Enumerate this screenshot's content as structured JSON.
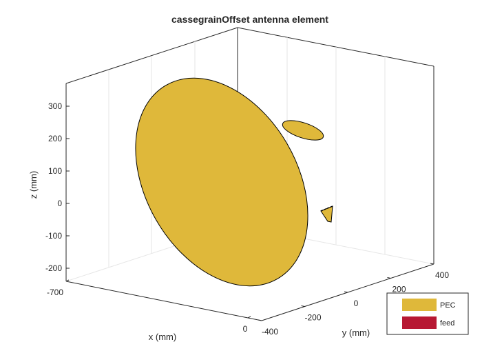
{
  "chart_data": {
    "type": "3d-surface",
    "title": "cassegrainOffset antenna element",
    "xlabel": "x (mm)",
    "ylabel": "y (mm)",
    "zlabel": "z (mm)",
    "x_ticks": [
      "-700",
      "0"
    ],
    "y_ticks": [
      "-400",
      "-200",
      "0",
      "200",
      "400"
    ],
    "z_ticks": [
      "300",
      "200",
      "100",
      "0",
      "-100",
      "-200"
    ],
    "grid": true,
    "legend_position": "bottom-right",
    "legend": [
      {
        "label": "PEC",
        "color": "#DFB83A"
      },
      {
        "label": "feed",
        "color": "#B71833"
      }
    ],
    "parts": [
      {
        "name": "main-reflector",
        "material": "PEC"
      },
      {
        "name": "subreflector",
        "material": "PEC"
      },
      {
        "name": "feed-horn",
        "material": "PEC"
      }
    ]
  }
}
